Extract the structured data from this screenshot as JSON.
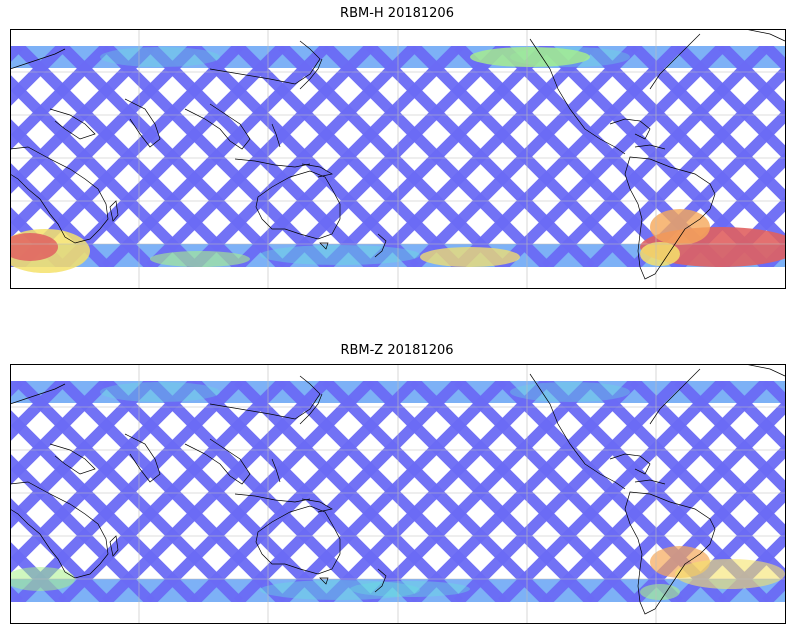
{
  "panels": [
    {
      "title": "RBM-H 20181206"
    },
    {
      "title": "RBM-Z 20181206"
    }
  ],
  "colors": {
    "low": "#6b6bf5",
    "low_mid": "#6fa8f5",
    "mid": "#66dede",
    "mid_high": "#a8f08a",
    "high": "#f5e26b",
    "very_high": "#f5a85a",
    "max": "#e06060",
    "coastline": "#000000",
    "gridline": "#bdbdbd"
  }
}
